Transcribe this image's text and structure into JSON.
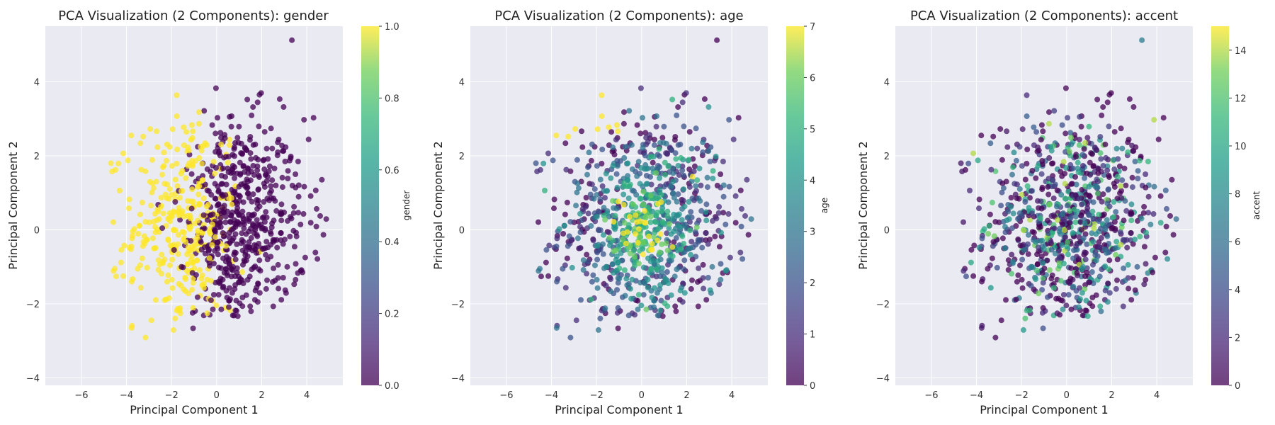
{
  "chart_data": [
    {
      "type": "scatter",
      "title": "PCA Visualization (2 Components): gender",
      "xlabel": "Principal Component 1",
      "ylabel": "Principal Component 2",
      "xlim": [
        -7.6,
        5.6
      ],
      "ylim": [
        -4.2,
        5.5
      ],
      "xticks": [
        -6,
        -4,
        -2,
        0,
        2,
        4
      ],
      "yticks": [
        -4,
        -2,
        0,
        2,
        4
      ],
      "grid": true,
      "colorbar": {
        "label": "gender",
        "min": 0.0,
        "max": 1.0,
        "ticks": [
          "0.0",
          "0.2",
          "0.4",
          "0.6",
          "0.8",
          "1.0"
        ]
      },
      "colormap": "viridis",
      "color_variable": "gender",
      "color_pattern": "binary: 1.0 mostly x < 0, 0.0 mostly x > 0",
      "approx_points": 900
    },
    {
      "type": "scatter",
      "title": "PCA Visualization (2 Components): age",
      "xlabel": "Principal Component 1",
      "ylabel": "Principal Component 2",
      "xlim": [
        -7.6,
        5.6
      ],
      "ylim": [
        -4.2,
        5.5
      ],
      "xticks": [
        -6,
        -4,
        -2,
        0,
        2,
        4
      ],
      "yticks": [
        -4,
        -2,
        0,
        2,
        4
      ],
      "grid": true,
      "colorbar": {
        "label": "age",
        "min": 0,
        "max": 7,
        "ticks": [
          "0",
          "1",
          "2",
          "3",
          "4",
          "5",
          "6",
          "7"
        ]
      },
      "colormap": "viridis",
      "color_variable": "age",
      "color_pattern": "integer 0-7, mixed; higher values concentrated near center",
      "approx_points": 900
    },
    {
      "type": "scatter",
      "title": "PCA Visualization (2 Components): accent",
      "xlabel": "Principal Component 1",
      "ylabel": "Principal Component 2",
      "xlim": [
        -7.6,
        5.6
      ],
      "ylim": [
        -4.2,
        5.5
      ],
      "xticks": [
        -6,
        -4,
        -2,
        0,
        2,
        4
      ],
      "yticks": [
        -4,
        -2,
        0,
        2,
        4
      ],
      "grid": true,
      "colorbar": {
        "label": "accent",
        "min": 0,
        "max": 15,
        "ticks": [
          "0",
          "2",
          "4",
          "6",
          "8",
          "10",
          "12",
          "14"
        ]
      },
      "colormap": "viridis",
      "color_variable": "accent",
      "color_pattern": "integer 0-15, mostly low values (dark) with scattered mid values",
      "approx_points": 900
    }
  ],
  "colors": {
    "plot_background": "#eaeaf2",
    "grid": "#ffffff",
    "viridis_low": "#440154",
    "viridis_mid": "#21918c",
    "viridis_high": "#fde725"
  }
}
